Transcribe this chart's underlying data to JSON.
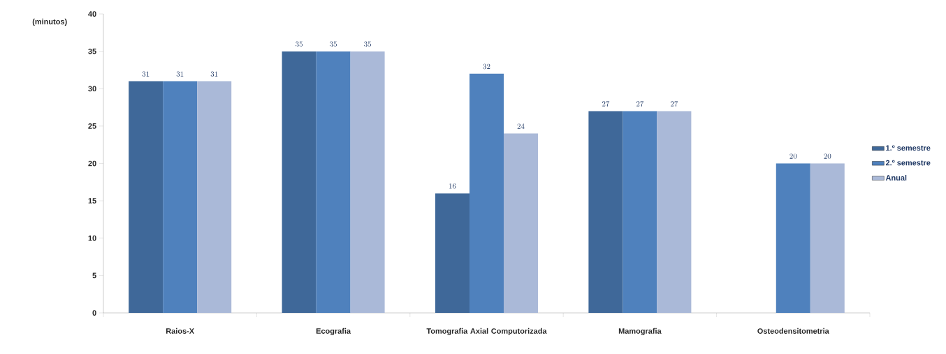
{
  "chart_data": {
    "type": "bar",
    "ylabel": "(minutos)",
    "categories": [
      "Raios-X",
      "Ecografia",
      "Tomografia Axial Computorizada",
      "Mamografia",
      "Osteodensitometria"
    ],
    "series": [
      {
        "name": "1.º semestre",
        "color": "#3f6899",
        "values": [
          31,
          35,
          16,
          27,
          null
        ]
      },
      {
        "name": "2.º semestre",
        "color": "#4f81bd",
        "values": [
          31,
          35,
          32,
          27,
          20
        ]
      },
      {
        "name": "Anual",
        "color": "#aab9d8",
        "values": [
          31,
          35,
          24,
          27,
          20
        ]
      }
    ],
    "ylim": [
      0,
      40
    ],
    "yticks": [
      0,
      5,
      10,
      15,
      20,
      25,
      30,
      35,
      40
    ],
    "data_labels": true,
    "legend": "right"
  }
}
